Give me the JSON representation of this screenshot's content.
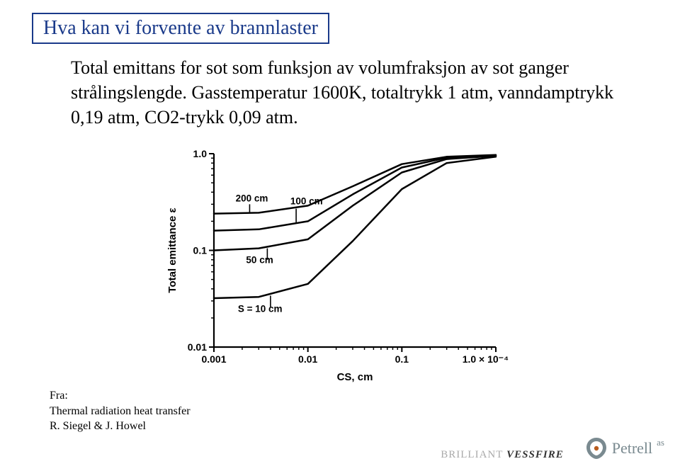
{
  "title": "Hva kan vi forvente av brannlaster",
  "caption": "Total emittans for sot som funksjon av volumfraksjon av sot ganger strålingslengde. Gasstemperatur 1600K, totaltrykk 1 atm, vanndamptrykk 0,19 atm, CO2-trykk 0,09 atm.",
  "citation": {
    "line1": "Fra:",
    "line2": "Thermal radiation heat transfer",
    "line3": "R. Siegel & J. Howel"
  },
  "footer": {
    "brilliant": "BRILLIANT",
    "vessfire": "VESSFIRE",
    "petrell": "Petrell",
    "as": "as"
  },
  "chart": {
    "type": "line",
    "xlabel": "CS, cm",
    "ylabel": "Total emittance ε",
    "xscale": "log",
    "yscale": "log",
    "xlim": [
      0.001,
      0.0001
    ],
    "xticks": [
      {
        "pos": 0,
        "label": "0.001"
      },
      {
        "pos": 1,
        "label": "0.01"
      },
      {
        "pos": 2,
        "label": "0.1"
      },
      {
        "pos": 3,
        "label": "1.0 × 10⁻⁴"
      }
    ],
    "yticks": [
      {
        "pos": 0,
        "label": "0.01"
      },
      {
        "pos": 1,
        "label": "0.1"
      },
      {
        "pos": 2,
        "label": "1.0"
      }
    ],
    "background_color": "#ffffff",
    "line_color": "#000000",
    "line_width": 2.5,
    "text_color": "#000000",
    "label_fontsize": 14,
    "tick_fontsize": 14,
    "series": [
      {
        "label": "200 cm",
        "baseline_y": 0.24,
        "data": [
          [
            0.001,
            0.24
          ],
          [
            0.003,
            0.245
          ],
          [
            0.01,
            0.29
          ],
          [
            0.03,
            0.46
          ],
          [
            0.1,
            0.78
          ],
          [
            0.3,
            0.93
          ],
          [
            1.0,
            0.97
          ]
        ]
      },
      {
        "label": "100 cm",
        "baseline_y": 0.16,
        "data": [
          [
            0.001,
            0.16
          ],
          [
            0.003,
            0.165
          ],
          [
            0.01,
            0.2
          ],
          [
            0.03,
            0.38
          ],
          [
            0.1,
            0.72
          ],
          [
            0.3,
            0.91
          ],
          [
            1.0,
            0.96
          ]
        ]
      },
      {
        "label": "50 cm",
        "baseline_y": 0.1,
        "data": [
          [
            0.001,
            0.1
          ],
          [
            0.003,
            0.105
          ],
          [
            0.01,
            0.13
          ],
          [
            0.03,
            0.29
          ],
          [
            0.1,
            0.64
          ],
          [
            0.3,
            0.88
          ],
          [
            1.0,
            0.95
          ]
        ]
      },
      {
        "label": "S = 10 cm",
        "baseline_y": 0.032,
        "data": [
          [
            0.001,
            0.032
          ],
          [
            0.003,
            0.033
          ],
          [
            0.01,
            0.045
          ],
          [
            0.03,
            0.125
          ],
          [
            0.1,
            0.43
          ],
          [
            0.3,
            0.8
          ],
          [
            1.0,
            0.93
          ]
        ]
      }
    ],
    "series_label_positions": {
      "200 cm": {
        "x": 0.0017,
        "y": 0.32
      },
      "100 cm": {
        "x": 0.0065,
        "y": 0.3
      },
      "50 cm": {
        "x": 0.0022,
        "y": 0.074
      },
      "S = 10 cm": {
        "x": 0.0018,
        "y": 0.023
      }
    }
  }
}
